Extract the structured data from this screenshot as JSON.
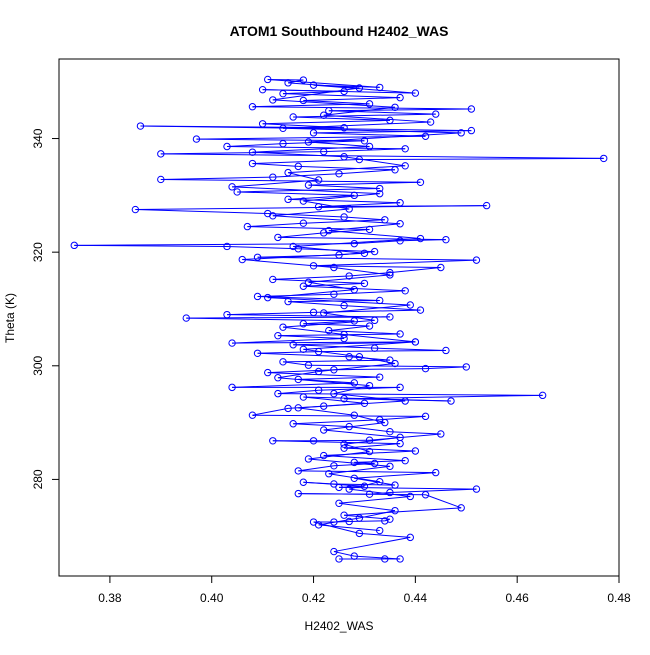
{
  "chart_data": {
    "type": "scatter",
    "title": "ATOM1 Southbound H2402_WAS",
    "xlabel": "H2402_WAS",
    "ylabel": "Theta (K)",
    "xlim": [
      0.37,
      0.48
    ],
    "ylim": [
      263,
      354
    ],
    "x_ticks": [
      0.38,
      0.4,
      0.42,
      0.44,
      0.46,
      0.48
    ],
    "y_ticks": [
      280,
      300,
      320,
      340
    ],
    "x_tick_labels": [
      "0.38",
      "0.40",
      "0.42",
      "0.44",
      "0.46",
      "0.48"
    ],
    "y_tick_labels": [
      "280",
      "300",
      "320",
      "340"
    ],
    "grid": false,
    "legend": "none",
    "series": [
      {
        "connected": true,
        "marker": "open-circle",
        "color": "#0000ff",
        "points": [
          [
            0.425,
            266.0
          ],
          [
            0.434,
            266.0
          ],
          [
            0.437,
            266.0
          ],
          [
            0.428,
            266.5
          ],
          [
            0.424,
            267.3
          ],
          [
            0.439,
            269.8
          ],
          [
            0.429,
            270.5
          ],
          [
            0.42,
            272.5
          ],
          [
            0.424,
            272.5
          ],
          [
            0.427,
            272.6
          ],
          [
            0.434,
            272.7
          ],
          [
            0.435,
            273.0
          ],
          [
            0.426,
            273.7
          ],
          [
            0.449,
            275.0
          ],
          [
            0.442,
            277.3
          ],
          [
            0.417,
            277.5
          ],
          [
            0.431,
            277.4
          ],
          [
            0.435,
            277.7
          ],
          [
            0.452,
            278.3
          ],
          [
            0.425,
            278.6
          ],
          [
            0.43,
            278.8
          ],
          [
            0.418,
            279.5
          ],
          [
            0.424,
            279.2
          ],
          [
            0.436,
            279.0
          ],
          [
            0.428,
            280.2
          ],
          [
            0.444,
            281.2
          ],
          [
            0.417,
            281.5
          ],
          [
            0.424,
            282.4
          ],
          [
            0.432,
            282.8
          ],
          [
            0.428,
            283.0
          ],
          [
            0.438,
            283.3
          ],
          [
            0.422,
            284.2
          ],
          [
            0.44,
            285.0
          ],
          [
            0.426,
            285.5
          ],
          [
            0.437,
            286.3
          ],
          [
            0.412,
            286.8
          ],
          [
            0.42,
            286.8
          ],
          [
            0.431,
            286.9
          ],
          [
            0.445,
            288.0
          ],
          [
            0.435,
            288.4
          ],
          [
            0.427,
            289.3
          ],
          [
            0.416,
            289.8
          ],
          [
            0.433,
            290.5
          ],
          [
            0.442,
            291.1
          ],
          [
            0.408,
            291.3
          ],
          [
            0.415,
            292.5
          ],
          [
            0.422,
            292.9
          ],
          [
            0.43,
            293.4
          ],
          [
            0.418,
            294.5
          ],
          [
            0.447,
            293.8
          ],
          [
            0.426,
            294.2
          ],
          [
            0.465,
            294.8
          ],
          [
            0.413,
            295.1
          ],
          [
            0.421,
            295.7
          ],
          [
            0.437,
            296.2
          ],
          [
            0.404,
            296.2
          ],
          [
            0.428,
            297.0
          ],
          [
            0.417,
            297.6
          ],
          [
            0.433,
            298.0
          ],
          [
            0.411,
            298.8
          ],
          [
            0.424,
            299.3
          ],
          [
            0.442,
            299.5
          ],
          [
            0.45,
            299.8
          ],
          [
            0.419,
            300.1
          ],
          [
            0.414,
            300.7
          ],
          [
            0.435,
            301.0
          ],
          [
            0.427,
            301.6
          ],
          [
            0.409,
            302.2
          ],
          [
            0.421,
            302.5
          ],
          [
            0.446,
            302.7
          ],
          [
            0.432,
            303.1
          ],
          [
            0.416,
            303.7
          ],
          [
            0.44,
            304.2
          ],
          [
            0.404,
            304.0
          ],
          [
            0.426,
            304.8
          ],
          [
            0.413,
            305.3
          ],
          [
            0.437,
            305.6
          ],
          [
            0.423,
            306.2
          ],
          [
            0.431,
            307.0
          ],
          [
            0.418,
            307.4
          ],
          [
            0.428,
            307.9
          ],
          [
            0.395,
            308.4
          ],
          [
            0.435,
            308.6
          ],
          [
            0.403,
            309.0
          ],
          [
            0.42,
            309.4
          ],
          [
            0.441,
            309.8
          ],
          [
            0.426,
            310.6
          ],
          [
            0.415,
            311.3
          ],
          [
            0.433,
            311.5
          ],
          [
            0.409,
            312.2
          ],
          [
            0.424,
            312.6
          ],
          [
            0.438,
            313.2
          ],
          [
            0.418,
            314.0
          ],
          [
            0.43,
            314.5
          ],
          [
            0.412,
            315.2
          ],
          [
            0.427,
            315.8
          ],
          [
            0.435,
            316.4
          ],
          [
            0.445,
            317.3
          ],
          [
            0.42,
            317.6
          ],
          [
            0.452,
            318.6
          ],
          [
            0.409,
            319.1
          ],
          [
            0.425,
            319.5
          ],
          [
            0.432,
            320.1
          ],
          [
            0.417,
            320.6
          ],
          [
            0.403,
            321.0
          ],
          [
            0.373,
            321.2
          ],
          [
            0.428,
            321.5
          ],
          [
            0.437,
            322.0
          ],
          [
            0.446,
            322.2
          ],
          [
            0.413,
            322.6
          ],
          [
            0.422,
            323.4
          ],
          [
            0.431,
            324.0
          ],
          [
            0.407,
            324.5
          ],
          [
            0.418,
            325.1
          ],
          [
            0.434,
            325.7
          ],
          [
            0.426,
            326.2
          ],
          [
            0.411,
            326.8
          ],
          [
            0.385,
            327.5
          ],
          [
            0.454,
            328.2
          ],
          [
            0.421,
            328.0
          ],
          [
            0.437,
            328.7
          ],
          [
            0.415,
            329.3
          ],
          [
            0.428,
            330.0
          ],
          [
            0.405,
            330.6
          ],
          [
            0.433,
            331.2
          ],
          [
            0.419,
            331.8
          ],
          [
            0.441,
            332.3
          ],
          [
            0.39,
            332.8
          ],
          [
            0.412,
            333.2
          ],
          [
            0.425,
            333.8
          ],
          [
            0.436,
            334.5
          ],
          [
            0.417,
            335.1
          ],
          [
            0.408,
            335.6
          ],
          [
            0.429,
            336.3
          ],
          [
            0.477,
            336.5
          ],
          [
            0.39,
            337.3
          ],
          [
            0.422,
            337.7
          ],
          [
            0.438,
            338.2
          ],
          [
            0.403,
            338.6
          ],
          [
            0.414,
            339.1
          ],
          [
            0.43,
            339.6
          ],
          [
            0.397,
            339.9
          ],
          [
            0.442,
            340.4
          ],
          [
            0.42,
            341.0
          ],
          [
            0.451,
            341.4
          ],
          [
            0.386,
            342.2
          ],
          [
            0.426,
            341.9
          ],
          [
            0.41,
            342.6
          ],
          [
            0.435,
            343.2
          ],
          [
            0.416,
            343.8
          ],
          [
            0.444,
            344.3
          ],
          [
            0.423,
            344.9
          ],
          [
            0.451,
            345.2
          ],
          [
            0.408,
            345.6
          ],
          [
            0.431,
            346.1
          ],
          [
            0.418,
            346.7
          ],
          [
            0.437,
            347.2
          ],
          [
            0.414,
            347.9
          ],
          [
            0.426,
            348.3
          ],
          [
            0.41,
            348.6
          ],
          [
            0.44,
            348.0
          ],
          [
            0.42,
            349.4
          ],
          [
            0.433,
            349.0
          ],
          [
            0.411,
            350.4
          ],
          [
            0.418,
            350.3
          ],
          [
            0.415,
            349.8
          ],
          [
            0.429,
            348.9
          ],
          [
            0.412,
            346.8
          ],
          [
            0.436,
            345.5
          ],
          [
            0.422,
            344.1
          ],
          [
            0.443,
            342.9
          ],
          [
            0.414,
            341.8
          ],
          [
            0.449,
            341.0
          ],
          [
            0.419,
            339.4
          ],
          [
            0.431,
            338.6
          ],
          [
            0.408,
            337.6
          ],
          [
            0.426,
            336.8
          ],
          [
            0.438,
            335.2
          ],
          [
            0.415,
            334.0
          ],
          [
            0.421,
            332.7
          ],
          [
            0.404,
            331.5
          ],
          [
            0.433,
            330.3
          ],
          [
            0.418,
            329.0
          ],
          [
            0.427,
            327.6
          ],
          [
            0.412,
            326.4
          ],
          [
            0.437,
            325.0
          ],
          [
            0.423,
            323.8
          ],
          [
            0.441,
            322.4
          ],
          [
            0.416,
            321.0
          ],
          [
            0.43,
            319.8
          ],
          [
            0.406,
            318.7
          ],
          [
            0.424,
            317.3
          ],
          [
            0.435,
            316.0
          ],
          [
            0.419,
            314.7
          ],
          [
            0.428,
            313.4
          ],
          [
            0.411,
            312.0
          ],
          [
            0.439,
            310.7
          ],
          [
            0.422,
            309.3
          ],
          [
            0.432,
            308.0
          ],
          [
            0.414,
            306.8
          ],
          [
            0.426,
            305.5
          ],
          [
            0.44,
            304.2
          ],
          [
            0.418,
            302.9
          ],
          [
            0.429,
            301.6
          ],
          [
            0.436,
            300.4
          ],
          [
            0.421,
            299.0
          ],
          [
            0.413,
            297.9
          ],
          [
            0.431,
            296.5
          ],
          [
            0.424,
            295.1
          ],
          [
            0.438,
            293.8
          ],
          [
            0.417,
            292.6
          ],
          [
            0.428,
            291.3
          ],
          [
            0.434,
            290.0
          ],
          [
            0.422,
            288.7
          ],
          [
            0.437,
            287.4
          ],
          [
            0.426,
            286.2
          ],
          [
            0.431,
            284.9
          ],
          [
            0.419,
            283.6
          ],
          [
            0.435,
            282.3
          ],
          [
            0.423,
            281.0
          ],
          [
            0.433,
            279.6
          ],
          [
            0.427,
            278.3
          ],
          [
            0.439,
            277.0
          ],
          [
            0.425,
            275.8
          ],
          [
            0.436,
            274.5
          ],
          [
            0.429,
            273.2
          ],
          [
            0.421,
            272.0
          ],
          [
            0.433,
            271.0
          ]
        ]
      }
    ]
  }
}
